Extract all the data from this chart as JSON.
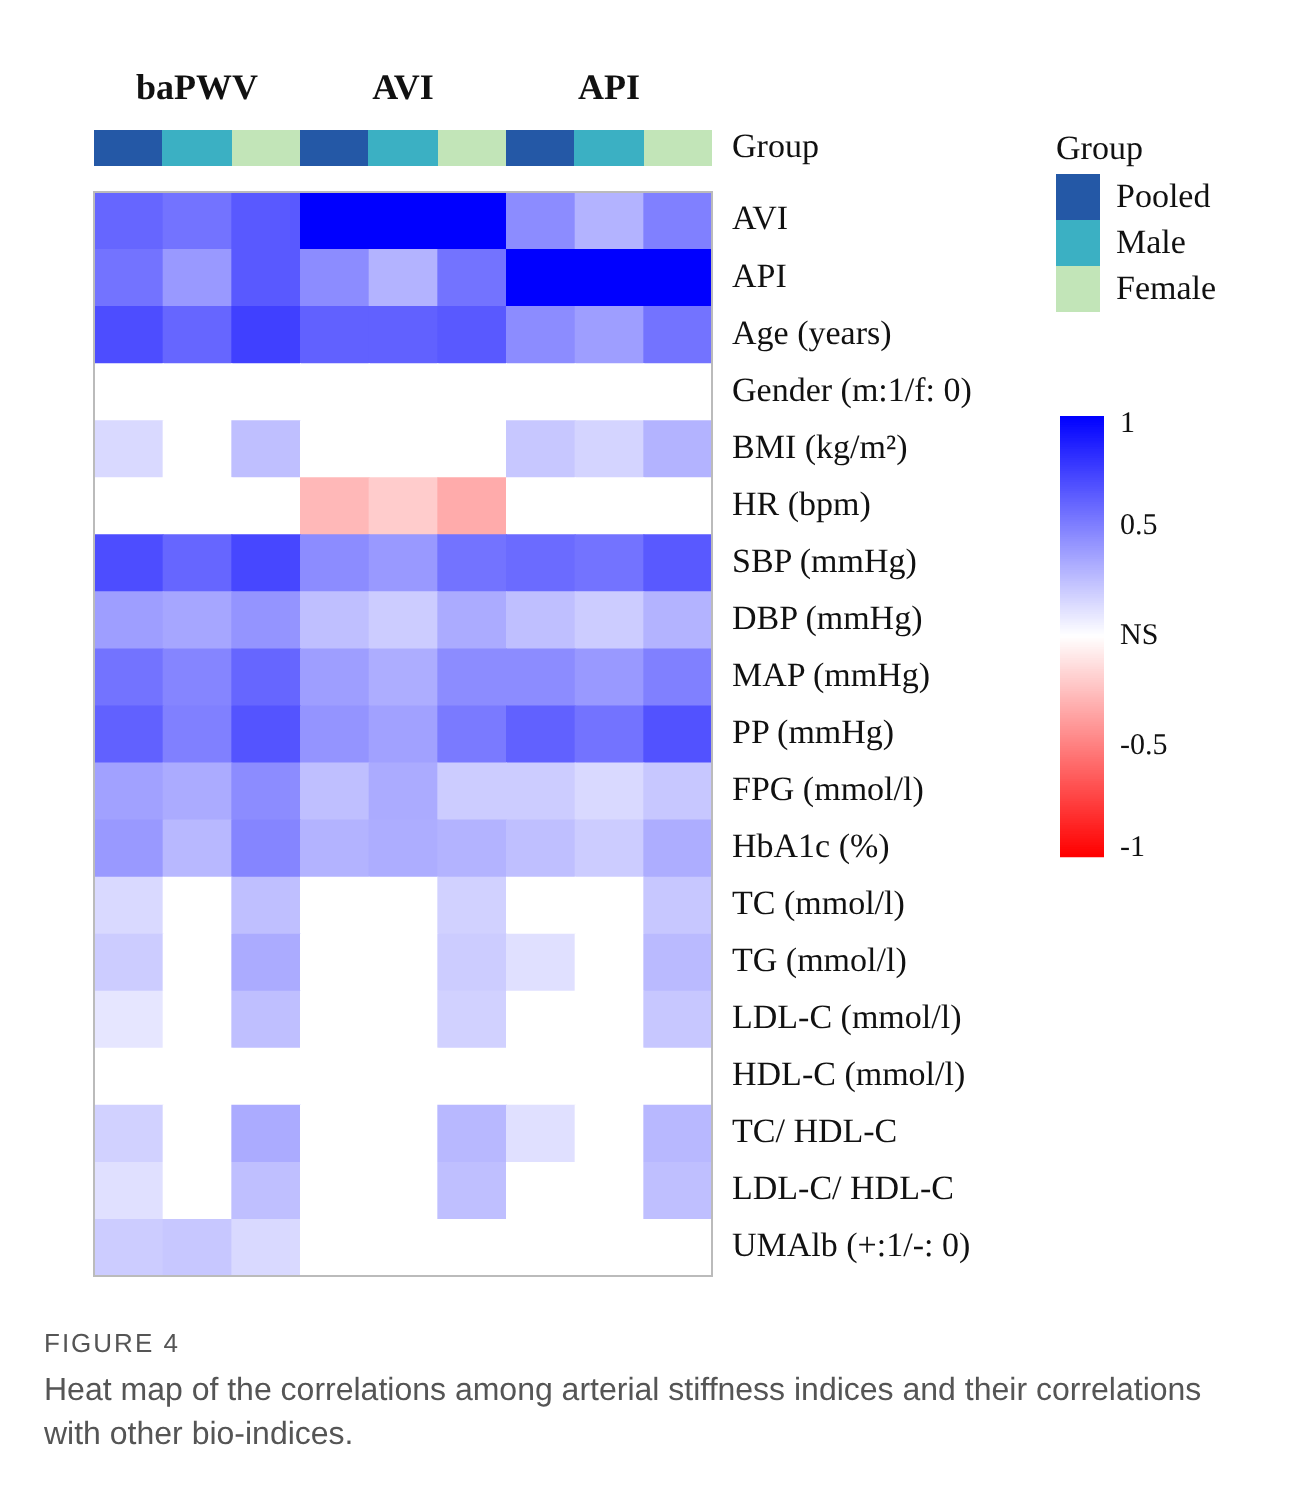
{
  "chart_data": {
    "type": "heatmap",
    "annotations": [
      "Pooled",
      "Male",
      "Female",
      "FIGURE 4",
      "Heat map of the correlations among arterial stiffness indices and their correlations with other bio-indices."
    ],
    "categories": [
      null,
      "baPWV",
      null,
      null,
      "AVI",
      null,
      null,
      "API",
      null
    ],
    "y_categories": [
      "AVI",
      "API",
      "Age (years)",
      "Gender (m:1/f: 0)",
      "BMI (kg/m²)",
      "HR (bpm)",
      "SBP (mmHg)",
      "DBP (mmHg)",
      "MAP (mmHg)",
      "PP (mmHg)",
      "FPG (mmol/l)",
      "HbA1c (%)",
      "TC (mmol/l)",
      "TG (mmol/l)",
      "LDL-C (mmol/l)",
      "HDL-C (mmol/l)",
      "TC/ HDL-C",
      "LDL-C/ HDL-C",
      "UMAlb (+:1/-: 0)"
    ],
    "cells": [
      [
        0.6,
        0.55,
        0.65,
        1,
        1,
        1,
        0.45,
        0.3,
        0.5
      ],
      [
        0.55,
        0.4,
        0.65,
        0.45,
        0.3,
        0.55,
        1,
        1,
        1
      ],
      [
        0.7,
        0.6,
        0.75,
        0.62,
        0.62,
        0.65,
        0.45,
        0.38,
        0.55
      ],
      [
        0,
        0,
        0,
        0,
        0,
        0,
        0,
        0,
        0
      ],
      [
        0.15,
        0,
        0.25,
        0,
        0,
        0,
        0.22,
        0.17,
        0.3
      ],
      [
        0,
        0,
        0,
        -0.28,
        -0.2,
        -0.33,
        0,
        0,
        0
      ],
      [
        0.7,
        0.6,
        0.72,
        0.45,
        0.4,
        0.55,
        0.58,
        0.55,
        0.65
      ],
      [
        0.38,
        0.35,
        0.42,
        0.25,
        0.2,
        0.33,
        0.25,
        0.2,
        0.3
      ],
      [
        0.55,
        0.48,
        0.6,
        0.38,
        0.32,
        0.45,
        0.45,
        0.4,
        0.5
      ],
      [
        0.62,
        0.5,
        0.67,
        0.42,
        0.37,
        0.52,
        0.62,
        0.55,
        0.68
      ],
      [
        0.37,
        0.33,
        0.45,
        0.25,
        0.33,
        0.2,
        0.2,
        0.15,
        0.22
      ],
      [
        0.4,
        0.28,
        0.48,
        0.3,
        0.32,
        0.3,
        0.25,
        0.2,
        0.32
      ],
      [
        0.15,
        0,
        0.25,
        0,
        0,
        0.18,
        0,
        0,
        0.22
      ],
      [
        0.2,
        0,
        0.33,
        0,
        0,
        0.2,
        0.12,
        0,
        0.27
      ],
      [
        0.1,
        0,
        0.25,
        0,
        0,
        0.18,
        0,
        0,
        0.22
      ],
      [
        0,
        0,
        0,
        0,
        0,
        0,
        0,
        0,
        0
      ],
      [
        0.18,
        0,
        0.33,
        0,
        0,
        0.28,
        0.12,
        0,
        0.28
      ],
      [
        0.12,
        0,
        0.25,
        0,
        0,
        0.25,
        0,
        0,
        0.25
      ],
      [
        0.2,
        0.22,
        0.15,
        0,
        0,
        0,
        0,
        0,
        0
      ]
    ],
    "clim": [
      -1,
      1
    ],
    "cticks": [
      1,
      0.5,
      {
        "value": 0,
        "label": "NS"
      },
      -0.5,
      -1
    ],
    "legend_title": "Group"
  }
}
